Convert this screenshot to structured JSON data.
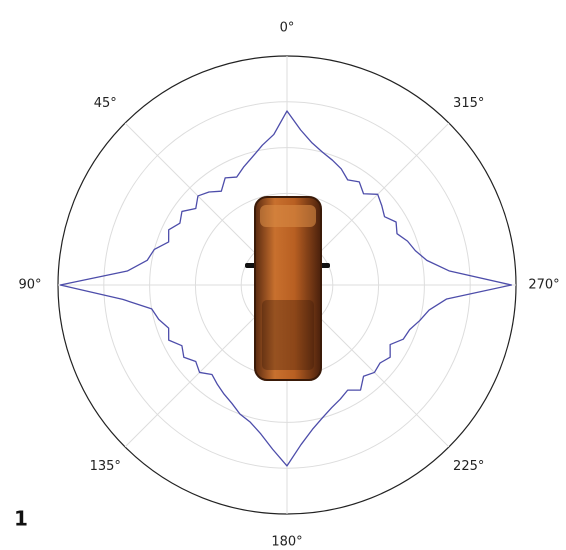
{
  "chart_data": {
    "type": "polar-line",
    "figure_label": "1",
    "theta_zero": "top",
    "theta_direction": "counterclockwise",
    "thetaticks": [
      {
        "value": 0,
        "label": "0°"
      },
      {
        "value": 45,
        "label": "45°"
      },
      {
        "value": 90,
        "label": "90°"
      },
      {
        "value": 135,
        "label": "135°"
      },
      {
        "value": 180,
        "label": "180°"
      },
      {
        "value": 225,
        "label": "225°"
      },
      {
        "value": 270,
        "label": "270°"
      },
      {
        "value": 315,
        "label": "315°"
      }
    ],
    "rlim": [
      0,
      1
    ],
    "rticks": [
      0.2,
      0.4,
      0.6,
      0.8,
      1
    ],
    "grid": true,
    "color": "#4d4daa",
    "theta": [
      0,
      5,
      10,
      15,
      20,
      25,
      30,
      35,
      40,
      45,
      50,
      55,
      60,
      65,
      70,
      75,
      80,
      85,
      90,
      95,
      100,
      105,
      110,
      115,
      120,
      125,
      130,
      135,
      140,
      145,
      150,
      155,
      160,
      165,
      170,
      175,
      180,
      185,
      190,
      195,
      200,
      205,
      210,
      215,
      220,
      225,
      230,
      235,
      240,
      245,
      250,
      255,
      260,
      265,
      270,
      275,
      280,
      285,
      290,
      295,
      300,
      305,
      310,
      315,
      320,
      325,
      330,
      335,
      340,
      345,
      350,
      355
    ],
    "values": [
      0.76,
      0.66,
      0.62,
      0.58,
      0.55,
      0.52,
      0.54,
      0.5,
      0.53,
      0.55,
      0.52,
      0.56,
      0.54,
      0.57,
      0.55,
      0.6,
      0.62,
      0.7,
      0.99,
      0.72,
      0.6,
      0.58,
      0.55,
      0.57,
      0.53,
      0.55,
      0.52,
      0.54,
      0.51,
      0.53,
      0.55,
      0.57,
      0.6,
      0.62,
      0.66,
      0.72,
      0.79,
      0.7,
      0.64,
      0.6,
      0.57,
      0.55,
      0.53,
      0.56,
      0.52,
      0.54,
      0.53,
      0.55,
      0.52,
      0.56,
      0.57,
      0.6,
      0.63,
      0.7,
      0.98,
      0.71,
      0.62,
      0.58,
      0.56,
      0.53,
      0.55,
      0.52,
      0.54,
      0.56,
      0.52,
      0.55,
      0.53,
      0.56,
      0.58,
      0.6,
      0.63,
      0.68
    ]
  }
}
